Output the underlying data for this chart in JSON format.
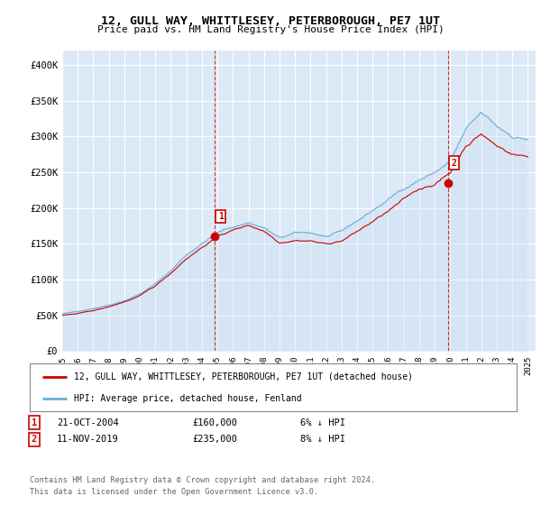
{
  "title_line1": "12, GULL WAY, WHITTLESEY, PETERBOROUGH, PE7 1UT",
  "title_line2": "Price paid vs. HM Land Registry's House Price Index (HPI)",
  "ylabel_ticks": [
    "£0",
    "£50K",
    "£100K",
    "£150K",
    "£200K",
    "£250K",
    "£300K",
    "£350K",
    "£400K"
  ],
  "ytick_values": [
    0,
    50000,
    100000,
    150000,
    200000,
    250000,
    300000,
    350000,
    400000
  ],
  "ylim": [
    0,
    420000
  ],
  "xlim_start": 1995.0,
  "xlim_end": 2025.5,
  "hpi_color": "#6aaed6",
  "hpi_fill_color": "#c6dcf0",
  "price_color": "#cc0000",
  "marker1_x": 2004.8,
  "marker1_y": 160000,
  "marker2_x": 2019.85,
  "marker2_y": 235000,
  "legend_property_label": "12, GULL WAY, WHITTLESEY, PETERBOROUGH, PE7 1UT (detached house)",
  "legend_hpi_label": "HPI: Average price, detached house, Fenland",
  "footer": "Contains HM Land Registry data © Crown copyright and database right 2024.\nThis data is licensed under the Open Government Licence v3.0.",
  "bg_color": "#ffffff",
  "plot_bg_color": "#dce9f7",
  "grid_color": "#ffffff"
}
